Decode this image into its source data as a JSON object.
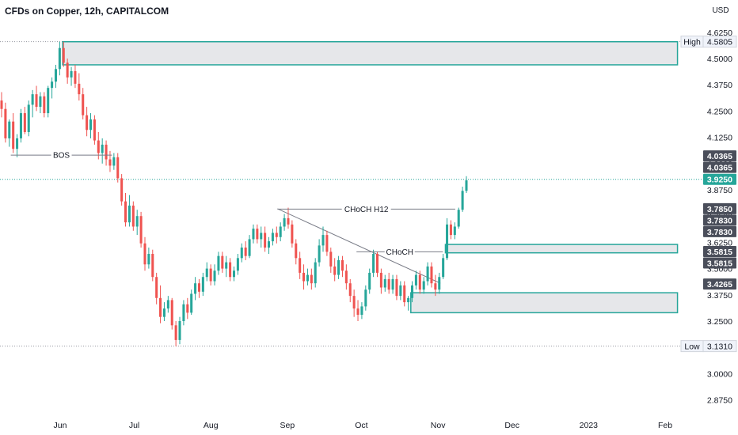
{
  "chart_data": {
    "type": "candlestick",
    "title": "CFDs on Copper, 12h, CAPITALCOM",
    "currency": "USD",
    "x_ticks": [
      "Jun",
      "Jul",
      "Aug",
      "Sep",
      "Oct",
      "Nov",
      "Dec",
      "2023",
      "Feb"
    ],
    "y_ticks": [
      "4.6250",
      "4.5000",
      "4.3750",
      "4.2500",
      "4.1250",
      "4.0000",
      "3.8750",
      "3.7500",
      "3.6250",
      "3.5000",
      "3.3750",
      "3.2500",
      "3.0000",
      "2.8750"
    ],
    "ylim": [
      2.82,
      4.7
    ],
    "price_tags": [
      {
        "label": "High",
        "value": "4.5805",
        "style": "outline"
      },
      {
        "label": "",
        "value": "4.0365",
        "style": "dark"
      },
      {
        "label": "",
        "value": "4.0365",
        "style": "dark"
      },
      {
        "label": "",
        "value": "3.9250",
        "style": "green"
      },
      {
        "label": "",
        "value": "3.7850",
        "style": "dark"
      },
      {
        "label": "",
        "value": "3.7830",
        "style": "dark"
      },
      {
        "label": "",
        "value": "3.7830",
        "style": "dark"
      },
      {
        "label": "",
        "value": "3.5815",
        "style": "dark"
      },
      {
        "label": "",
        "value": "3.5815",
        "style": "dark"
      },
      {
        "label": "",
        "value": "3.4265",
        "style": "dark"
      },
      {
        "label": "Low",
        "value": "3.1310",
        "style": "outline"
      }
    ],
    "reference_lines": [
      {
        "name": "high",
        "value": 4.5805
      },
      {
        "name": "last",
        "value": 3.925
      },
      {
        "name": "low",
        "value": 3.131
      }
    ],
    "zones": [
      {
        "name": "supply-zone",
        "top": 4.58,
        "bottom": 4.47,
        "x_start": "2022-06-02",
        "x_end": "2023-02-06"
      },
      {
        "name": "demand-zone-upper",
        "top": 3.615,
        "bottom": 3.575,
        "x_start": "2022-11-04",
        "x_end": "2023-02-06"
      },
      {
        "name": "demand-zone-lower",
        "top": 3.385,
        "bottom": 3.29,
        "x_start": "2022-10-21",
        "x_end": "2023-02-06"
      }
    ],
    "annotations": [
      {
        "text": "BOS",
        "y": 4.04,
        "x_start": "2022-05-12",
        "x_end": "2022-06-22"
      },
      {
        "text": "CHoCH H12",
        "y": 3.783,
        "x_start": "2022-08-28",
        "x_end": "2022-11-08"
      },
      {
        "text": "CHoCH",
        "y": 3.58,
        "x_start": "2022-09-29",
        "x_end": "2022-11-03"
      }
    ],
    "trendline": {
      "from": {
        "x": "2022-08-28",
        "y": 3.785
      },
      "to": {
        "x": "2022-11-02",
        "y": 3.43
      }
    },
    "up_color": "#26a69a",
    "down_color": "#ef5350",
    "zone_color": "#26a69a",
    "ohlc": [
      [
        4.3,
        4.34,
        4.22,
        4.26
      ],
      [
        4.26,
        4.29,
        4.1,
        4.12
      ],
      [
        4.12,
        4.21,
        4.08,
        4.2
      ],
      [
        4.2,
        4.24,
        4.05,
        4.07
      ],
      [
        4.07,
        4.14,
        4.03,
        4.12
      ],
      [
        4.12,
        4.26,
        4.1,
        4.24
      ],
      [
        4.24,
        4.27,
        4.14,
        4.15
      ],
      [
        4.15,
        4.3,
        4.13,
        4.28
      ],
      [
        4.28,
        4.35,
        4.22,
        4.33
      ],
      [
        4.33,
        4.37,
        4.25,
        4.27
      ],
      [
        4.27,
        4.34,
        4.24,
        4.32
      ],
      [
        4.32,
        4.34,
        4.22,
        4.24
      ],
      [
        4.24,
        4.37,
        4.22,
        4.36
      ],
      [
        4.36,
        4.41,
        4.31,
        4.39
      ],
      [
        4.39,
        4.47,
        4.36,
        4.45
      ],
      [
        4.45,
        4.58,
        4.42,
        4.55
      ],
      [
        4.55,
        4.58,
        4.46,
        4.48
      ],
      [
        4.48,
        4.5,
        4.38,
        4.41
      ],
      [
        4.41,
        4.46,
        4.37,
        4.44
      ],
      [
        4.44,
        4.47,
        4.36,
        4.38
      ],
      [
        4.38,
        4.43,
        4.3,
        4.33
      ],
      [
        4.33,
        4.36,
        4.21,
        4.23
      ],
      [
        4.23,
        4.27,
        4.13,
        4.16
      ],
      [
        4.16,
        4.24,
        4.12,
        4.21
      ],
      [
        4.21,
        4.23,
        4.09,
        4.11
      ],
      [
        4.11,
        4.15,
        4.02,
        4.05
      ],
      [
        4.05,
        4.12,
        4.0,
        4.09
      ],
      [
        4.09,
        4.11,
        3.99,
        4.02
      ],
      [
        4.02,
        4.06,
        3.96,
        3.99
      ],
      [
        3.99,
        4.05,
        3.97,
        4.03
      ],
      [
        4.03,
        4.05,
        3.91,
        3.93
      ],
      [
        3.93,
        3.95,
        3.8,
        3.82
      ],
      [
        3.82,
        3.86,
        3.7,
        3.72
      ],
      [
        3.72,
        3.85,
        3.7,
        3.8
      ],
      [
        3.8,
        3.82,
        3.68,
        3.7
      ],
      [
        3.7,
        3.78,
        3.66,
        3.75
      ],
      [
        3.75,
        3.77,
        3.6,
        3.62
      ],
      [
        3.62,
        3.65,
        3.49,
        3.52
      ],
      [
        3.52,
        3.6,
        3.5,
        3.57
      ],
      [
        3.57,
        3.59,
        3.44,
        3.46
      ],
      [
        3.46,
        3.48,
        3.33,
        3.36
      ],
      [
        3.36,
        3.42,
        3.24,
        3.27
      ],
      [
        3.27,
        3.34,
        3.25,
        3.31
      ],
      [
        3.31,
        3.37,
        3.29,
        3.35
      ],
      [
        3.35,
        3.36,
        3.21,
        3.23
      ],
      [
        3.23,
        3.25,
        3.13,
        3.16
      ],
      [
        3.16,
        3.27,
        3.14,
        3.25
      ],
      [
        3.25,
        3.35,
        3.23,
        3.33
      ],
      [
        3.33,
        3.36,
        3.26,
        3.29
      ],
      [
        3.29,
        3.4,
        3.28,
        3.38
      ],
      [
        3.38,
        3.46,
        3.35,
        3.43
      ],
      [
        3.43,
        3.45,
        3.36,
        3.39
      ],
      [
        3.39,
        3.48,
        3.37,
        3.46
      ],
      [
        3.46,
        3.53,
        3.44,
        3.5
      ],
      [
        3.5,
        3.52,
        3.42,
        3.44
      ],
      [
        3.44,
        3.52,
        3.42,
        3.49
      ],
      [
        3.49,
        3.58,
        3.47,
        3.56
      ],
      [
        3.56,
        3.58,
        3.48,
        3.5
      ],
      [
        3.5,
        3.56,
        3.46,
        3.53
      ],
      [
        3.53,
        3.55,
        3.44,
        3.46
      ],
      [
        3.46,
        3.51,
        3.44,
        3.49
      ],
      [
        3.49,
        3.57,
        3.47,
        3.55
      ],
      [
        3.55,
        3.62,
        3.53,
        3.6
      ],
      [
        3.6,
        3.63,
        3.54,
        3.56
      ],
      [
        3.56,
        3.66,
        3.55,
        3.64
      ],
      [
        3.64,
        3.71,
        3.62,
        3.69
      ],
      [
        3.69,
        3.71,
        3.62,
        3.64
      ],
      [
        3.64,
        3.7,
        3.6,
        3.67
      ],
      [
        3.67,
        3.7,
        3.58,
        3.6
      ],
      [
        3.6,
        3.65,
        3.57,
        3.63
      ],
      [
        3.63,
        3.69,
        3.61,
        3.67
      ],
      [
        3.67,
        3.7,
        3.62,
        3.65
      ],
      [
        3.65,
        3.72,
        3.63,
        3.7
      ],
      [
        3.7,
        3.76,
        3.68,
        3.74
      ],
      [
        3.74,
        3.79,
        3.69,
        3.71
      ],
      [
        3.71,
        3.73,
        3.6,
        3.62
      ],
      [
        3.62,
        3.64,
        3.52,
        3.55
      ],
      [
        3.55,
        3.58,
        3.45,
        3.48
      ],
      [
        3.48,
        3.52,
        3.4,
        3.44
      ],
      [
        3.44,
        3.5,
        3.42,
        3.47
      ],
      [
        3.47,
        3.5,
        3.4,
        3.43
      ],
      [
        3.43,
        3.55,
        3.41,
        3.53
      ],
      [
        3.53,
        3.64,
        3.51,
        3.61
      ],
      [
        3.61,
        3.7,
        3.58,
        3.66
      ],
      [
        3.66,
        3.68,
        3.56,
        3.58
      ],
      [
        3.58,
        3.6,
        3.48,
        3.51
      ],
      [
        3.51,
        3.55,
        3.44,
        3.47
      ],
      [
        3.47,
        3.56,
        3.45,
        3.54
      ],
      [
        3.54,
        3.56,
        3.46,
        3.49
      ],
      [
        3.49,
        3.52,
        3.4,
        3.43
      ],
      [
        3.43,
        3.45,
        3.34,
        3.37
      ],
      [
        3.37,
        3.4,
        3.27,
        3.31
      ],
      [
        3.31,
        3.35,
        3.25,
        3.28
      ],
      [
        3.28,
        3.34,
        3.26,
        3.32
      ],
      [
        3.32,
        3.42,
        3.3,
        3.4
      ],
      [
        3.4,
        3.5,
        3.38,
        3.48
      ],
      [
        3.48,
        3.59,
        3.46,
        3.57
      ],
      [
        3.57,
        3.58,
        3.46,
        3.48
      ],
      [
        3.48,
        3.5,
        3.38,
        3.41
      ],
      [
        3.41,
        3.47,
        3.39,
        3.45
      ],
      [
        3.45,
        3.48,
        3.38,
        3.4
      ],
      [
        3.4,
        3.47,
        3.38,
        3.45
      ],
      [
        3.45,
        3.47,
        3.35,
        3.37
      ],
      [
        3.37,
        3.44,
        3.35,
        3.42
      ],
      [
        3.42,
        3.44,
        3.32,
        3.34
      ],
      [
        3.34,
        3.37,
        3.3,
        3.36
      ],
      [
        3.36,
        3.44,
        3.34,
        3.42
      ],
      [
        3.42,
        3.49,
        3.4,
        3.47
      ],
      [
        3.47,
        3.49,
        3.38,
        3.4
      ],
      [
        3.4,
        3.46,
        3.38,
        3.44
      ],
      [
        3.44,
        3.53,
        3.42,
        3.51
      ],
      [
        3.51,
        3.53,
        3.41,
        3.43
      ],
      [
        3.43,
        3.47,
        3.37,
        3.4
      ],
      [
        3.4,
        3.48,
        3.38,
        3.46
      ],
      [
        3.46,
        3.57,
        3.45,
        3.55
      ],
      [
        3.55,
        3.74,
        3.54,
        3.71
      ],
      [
        3.71,
        3.73,
        3.64,
        3.66
      ],
      [
        3.66,
        3.72,
        3.64,
        3.7
      ],
      [
        3.7,
        3.79,
        3.69,
        3.78
      ],
      [
        3.78,
        3.89,
        3.77,
        3.87
      ],
      [
        3.87,
        3.94,
        3.86,
        3.92
      ]
    ]
  }
}
